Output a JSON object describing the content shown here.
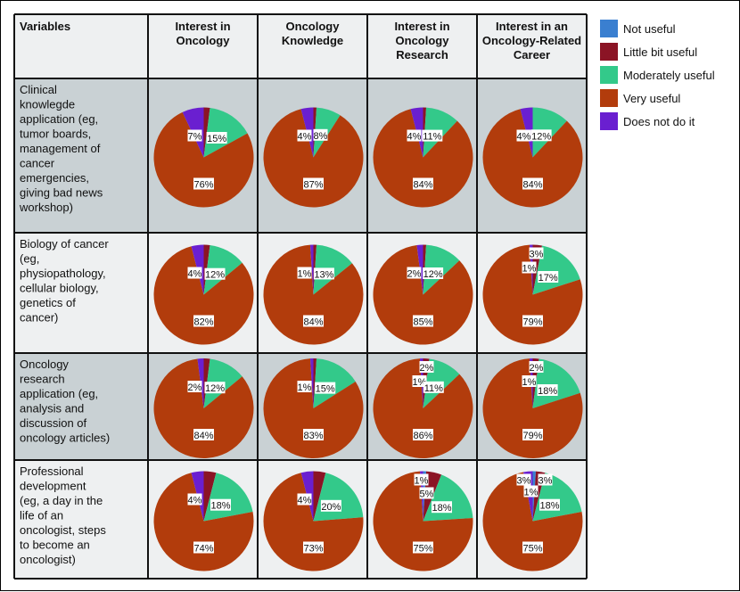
{
  "chart_data": {
    "type": "pie",
    "corner_label": "Variables",
    "columns": [
      [
        "Interest in",
        "Oncology"
      ],
      [
        "Oncology",
        "Knowledge"
      ],
      [
        "Interest in",
        "Oncology",
        "Research"
      ],
      [
        "Interest in an",
        "Oncology-Related",
        "Career"
      ]
    ],
    "rows": [
      {
        "label": [
          "Clinical",
          "knowlegde",
          "application (eg,",
          "tumor boards,",
          "management of",
          "cancer",
          "emergencies,",
          "giving bad news",
          "workshop)"
        ]
      },
      {
        "label": [
          "Biology of cancer",
          "(eg,",
          "physiopathology,",
          "cellular biology,",
          "genetics of",
          "cancer)"
        ]
      },
      {
        "label": [
          "Oncology",
          "research",
          "application (eg,",
          "analysis and",
          "discussion of",
          "oncology articles)"
        ]
      },
      {
        "label": [
          "Professional",
          "development",
          "(eg, a day in the",
          "life of an",
          "oncologist, steps",
          "to become an",
          "oncologist)"
        ]
      }
    ],
    "categories": [
      "Not useful",
      "Little bit useful",
      "Moderately useful",
      "Very useful",
      "Does not do it"
    ],
    "colors": [
      "#3a7fd0",
      "#8b1425",
      "#33c98a",
      "#b23c0c",
      "#6a1fd0"
    ],
    "values": [
      [
        [
          0,
          2,
          15,
          76,
          7
        ],
        [
          0,
          1,
          8,
          87,
          4
        ],
        [
          0,
          1,
          11,
          84,
          4
        ],
        [
          0,
          0,
          12,
          84,
          4
        ]
      ],
      [
        [
          0,
          2,
          12,
          82,
          4
        ],
        [
          0,
          1,
          13,
          84,
          1
        ],
        [
          0,
          1,
          12,
          85,
          2
        ],
        [
          0,
          3,
          17,
          79,
          1
        ]
      ],
      [
        [
          0,
          2,
          12,
          84,
          2
        ],
        [
          0,
          1,
          15,
          83,
          1
        ],
        [
          0,
          2,
          11,
          86,
          1
        ],
        [
          0,
          2,
          18,
          79,
          1
        ]
      ],
      [
        [
          0,
          4,
          18,
          74,
          4
        ],
        [
          0,
          4,
          20,
          73,
          4
        ],
        [
          1,
          5,
          18,
          75,
          1
        ],
        [
          1,
          3,
          18,
          75,
          3
        ]
      ]
    ],
    "labels": [
      [
        [
          {
            "c": 4,
            "t": "7%"
          },
          {
            "c": 2,
            "t": "15%"
          },
          {
            "c": 3,
            "t": "76%"
          }
        ],
        [
          {
            "c": 4,
            "t": "4%"
          },
          {
            "c": 2,
            "t": "8%"
          },
          {
            "c": 3,
            "t": "87%"
          }
        ],
        [
          {
            "c": 4,
            "t": "4%"
          },
          {
            "c": 2,
            "t": "11%"
          },
          {
            "c": 3,
            "t": "84%"
          }
        ],
        [
          {
            "c": 4,
            "t": "4%"
          },
          {
            "c": 2,
            "t": "12%"
          },
          {
            "c": 3,
            "t": "84%"
          }
        ]
      ],
      [
        [
          {
            "c": 4,
            "t": "4%"
          },
          {
            "c": 2,
            "t": "12%"
          },
          {
            "c": 3,
            "t": "82%"
          }
        ],
        [
          {
            "c": 4,
            "t": "1%"
          },
          {
            "c": 2,
            "t": "13%"
          },
          {
            "c": 3,
            "t": "84%"
          }
        ],
        [
          {
            "c": 4,
            "t": "2%"
          },
          {
            "c": 2,
            "t": "12%"
          },
          {
            "c": 3,
            "t": "85%"
          }
        ],
        [
          {
            "c": 1,
            "t": "3%"
          },
          {
            "c": 4,
            "t": "1%"
          },
          {
            "c": 2,
            "t": "17%"
          },
          {
            "c": 3,
            "t": "79%"
          }
        ]
      ],
      [
        [
          {
            "c": 4,
            "t": "2%"
          },
          {
            "c": 2,
            "t": "12%"
          },
          {
            "c": 3,
            "t": "84%"
          }
        ],
        [
          {
            "c": 4,
            "t": "1%"
          },
          {
            "c": 2,
            "t": "15%"
          },
          {
            "c": 3,
            "t": "83%"
          }
        ],
        [
          {
            "c": 1,
            "t": "2%"
          },
          {
            "c": 4,
            "t": "1%"
          },
          {
            "c": 2,
            "t": "11%"
          },
          {
            "c": 3,
            "t": "86%"
          }
        ],
        [
          {
            "c": 1,
            "t": "2%"
          },
          {
            "c": 4,
            "t": "1%"
          },
          {
            "c": 2,
            "t": "18%"
          },
          {
            "c": 3,
            "t": "79%"
          }
        ]
      ],
      [
        [
          {
            "c": 4,
            "t": "4%"
          },
          {
            "c": 2,
            "t": "18%"
          },
          {
            "c": 3,
            "t": "74%"
          }
        ],
        [
          {
            "c": 4,
            "t": "4%"
          },
          {
            "c": 2,
            "t": "20%"
          },
          {
            "c": 3,
            "t": "73%"
          }
        ],
        [
          {
            "c": 0,
            "t": "1%"
          },
          {
            "c": 1,
            "t": "5%"
          },
          {
            "c": 2,
            "t": "18%"
          },
          {
            "c": 3,
            "t": "75%"
          }
        ],
        [
          {
            "c": 4,
            "t": "3%"
          },
          {
            "c": 0,
            "t": "1%"
          },
          {
            "c": 1,
            "t": "3%"
          },
          {
            "c": 2,
            "t": "18%"
          },
          {
            "c": 3,
            "t": "75%"
          }
        ]
      ]
    ]
  }
}
